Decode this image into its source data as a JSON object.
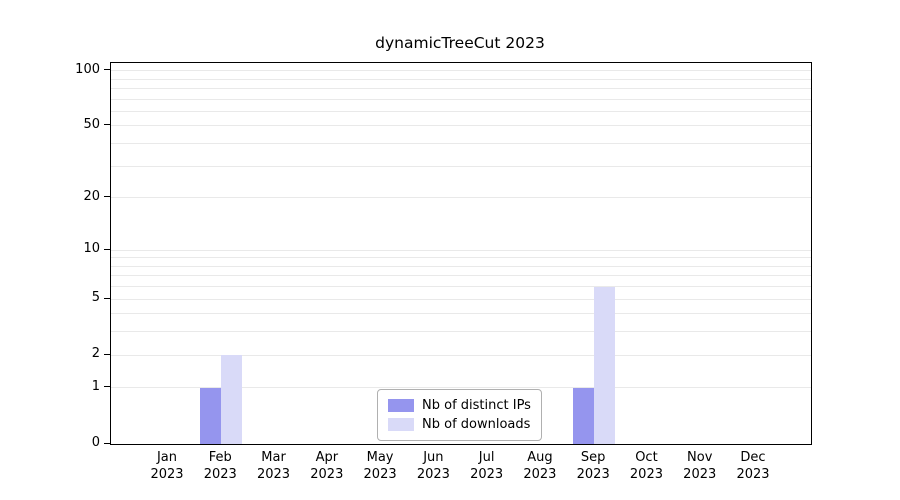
{
  "chart_data": {
    "type": "bar",
    "title": "dynamicTreeCut 2023",
    "categories": [
      "Jan 2023",
      "Feb 2023",
      "Mar 2023",
      "Apr 2023",
      "May 2023",
      "Jun 2023",
      "Jul 2023",
      "Aug 2023",
      "Sep 2023",
      "Oct 2023",
      "Nov 2023",
      "Dec 2023"
    ],
    "series": [
      {
        "name": "Nb of distinct IPs",
        "color": "#9595ee",
        "values": [
          0,
          1,
          0,
          0,
          0,
          0,
          0,
          0,
          1,
          0,
          0,
          0
        ]
      },
      {
        "name": "Nb of downloads",
        "color": "#d9daf8",
        "values": [
          0,
          2,
          0,
          0,
          0,
          0,
          0,
          0,
          6,
          0,
          0,
          0
        ]
      }
    ],
    "xlabel": "",
    "ylabel": "",
    "yscale": "log1p",
    "ylim": [
      0,
      110
    ],
    "yticks": [
      0,
      1,
      2,
      5,
      10,
      20,
      50,
      100
    ],
    "gridlines": [
      1,
      2,
      3,
      4,
      5,
      6,
      7,
      8,
      9,
      10,
      20,
      30,
      40,
      50,
      60,
      70,
      80,
      90,
      100
    ],
    "grid": true,
    "legend_position": "bottom-center-inside"
  }
}
